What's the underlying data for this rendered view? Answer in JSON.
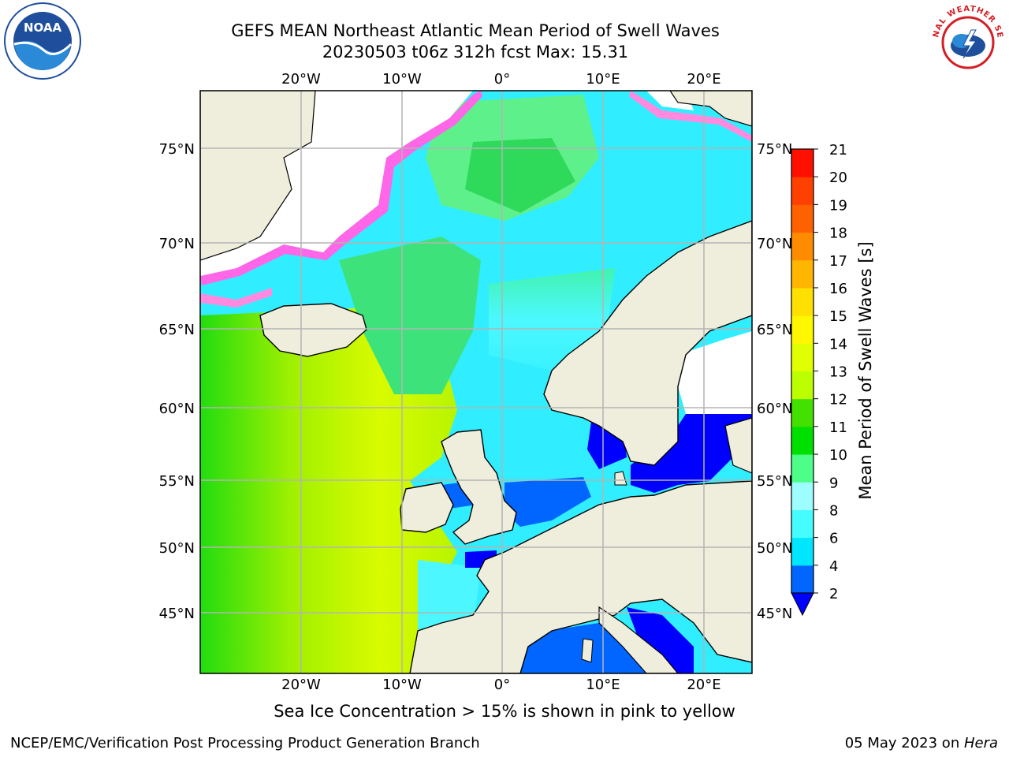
{
  "header": {
    "title_line1": "GEFS MEAN Northeast Atlantic Mean Period of Swell Waves",
    "title_line2": "20230503 t06z 312h fcst   Max: 15.31"
  },
  "map": {
    "longitude_ticks": [
      {
        "value": -20,
        "label": "20°W"
      },
      {
        "value": -10,
        "label": "10°W"
      },
      {
        "value": 0,
        "label": "0°"
      },
      {
        "value": 10,
        "label": "10°E"
      },
      {
        "value": 20,
        "label": "20°E"
      }
    ],
    "latitude_ticks": [
      {
        "value": 45,
        "label": "45°N"
      },
      {
        "value": 50,
        "label": "50°N"
      },
      {
        "value": 55,
        "label": "55°N"
      },
      {
        "value": 60,
        "label": "60°N"
      },
      {
        "value": 65,
        "label": "65°N"
      },
      {
        "value": 70,
        "label": "70°N"
      },
      {
        "value": 75,
        "label": "75°N"
      }
    ],
    "gridlines": true,
    "colors": {
      "land": "#efeedc",
      "coastline": "#000000",
      "gridline": "#b4b4b4",
      "no_data": "#ffffff"
    }
  },
  "colorbar": {
    "label": "Mean Period of Swell Waves [s]",
    "ticks": [
      "2",
      "4",
      "6",
      "8",
      "9",
      "10",
      "11",
      "12",
      "13",
      "14",
      "15",
      "16",
      "17",
      "18",
      "19",
      "20",
      "21"
    ],
    "band_colors": [
      "#0066ff",
      "#00e6ff",
      "#45fdff",
      "#9efeff",
      "#4dff88",
      "#00e000",
      "#44e000",
      "#bcff00",
      "#e0ff00",
      "#fff700",
      "#ffe000",
      "#ffb600",
      "#ff8c00",
      "#ff6000",
      "#ff4000",
      "#ff0f00"
    ],
    "extend_min_color": "#0000ff"
  },
  "caption": "Sea Ice Concentration > 15% is shown in pink to yellow",
  "footer": {
    "left": "NCEP/EMC/Verification Post Processing Product Generation Branch",
    "date": "05 May 2023 on ",
    "system": "Hera"
  },
  "logos": {
    "noaa_text": "NOAA",
    "nws_text": "NATIONAL WEATHER SERVICE"
  }
}
